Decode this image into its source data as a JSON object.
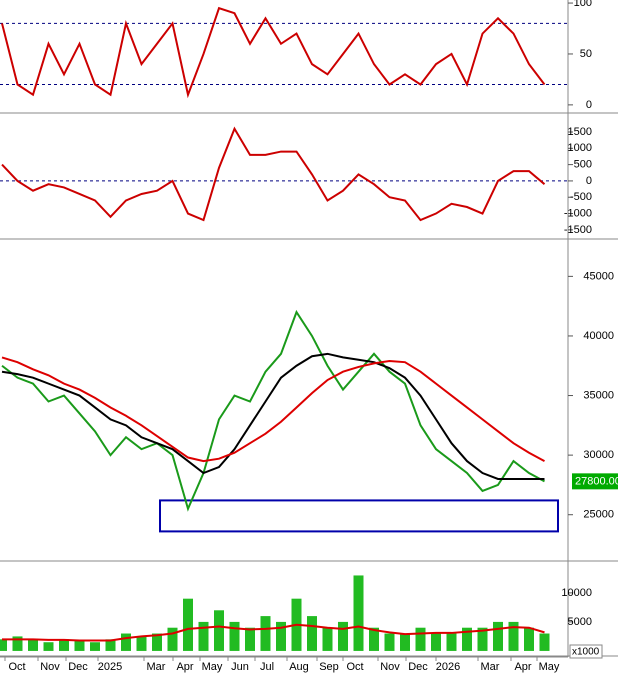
{
  "chart_data": [
    {
      "type": "line",
      "ylim": [
        -7,
        103
      ],
      "yticks": [
        0,
        50,
        100
      ],
      "ref_lines": [
        20,
        80
      ],
      "series": [
        {
          "color": "#cc0000",
          "values": [
            80,
            20,
            10,
            60,
            30,
            60,
            20,
            10,
            80,
            40,
            60,
            80,
            10,
            50,
            95,
            90,
            60,
            85,
            60,
            70,
            40,
            30,
            50,
            70,
            40,
            20,
            30,
            20,
            40,
            50,
            20,
            70,
            85,
            70,
            40,
            20
          ]
        }
      ]
    },
    {
      "type": "line",
      "ylim": [
        -1750,
        1960
      ],
      "yticks": [
        -1500,
        -1000,
        -500,
        0,
        500,
        1000,
        1500
      ],
      "ref_lines": [
        0
      ],
      "series": [
        {
          "color": "#cc0000",
          "values": [
            500,
            0,
            -300,
            -100,
            -200,
            -400,
            -600,
            -1100,
            -600,
            -400,
            -300,
            0,
            -1000,
            -1200,
            400,
            1600,
            800,
            800,
            900,
            900,
            200,
            -600,
            -300,
            200,
            -100,
            -500,
            -600,
            -1200,
            -1000,
            -700,
            -800,
            -1000,
            0,
            300,
            300,
            -100
          ]
        }
      ]
    },
    {
      "type": "line",
      "ylim": [
        21200,
        47800
      ],
      "yticks": [
        25000,
        30000,
        35000,
        40000,
        45000
      ],
      "series": [
        {
          "color": "#1a9a1a",
          "values": [
            37500,
            36500,
            36000,
            34500,
            35000,
            33500,
            32000,
            30000,
            31500,
            30500,
            31000,
            30000,
            25500,
            28500,
            33000,
            35000,
            34500,
            37000,
            38500,
            42000,
            40000,
            37500,
            35500,
            37000,
            38500,
            37000,
            36000,
            32500,
            30500,
            29500,
            28500,
            27000,
            27500,
            29500,
            28500,
            27800
          ]
        },
        {
          "color": "#000000",
          "values": [
            37000,
            36800,
            36500,
            36000,
            35500,
            35000,
            34000,
            33000,
            32500,
            31500,
            31000,
            30500,
            29500,
            28500,
            29000,
            30500,
            32500,
            34500,
            36500,
            37500,
            38300,
            38500,
            38200,
            38000,
            37800,
            37300,
            36500,
            35000,
            33000,
            31000,
            29500,
            28500,
            28000,
            28000,
            28000,
            28000
          ]
        },
        {
          "color": "#dd0000",
          "values": [
            38200,
            37800,
            37200,
            36700,
            36000,
            35500,
            34800,
            34000,
            33300,
            32500,
            31600,
            30700,
            29800,
            29500,
            29700,
            30200,
            31000,
            31800,
            32800,
            34000,
            35200,
            36300,
            37000,
            37400,
            37700,
            37900,
            37800,
            37000,
            36000,
            35000,
            34000,
            33000,
            32000,
            31000,
            30200,
            29500
          ]
        }
      ],
      "box": {
        "ylim": [
          23600,
          26200
        ],
        "color": "#0000aa"
      },
      "last_price": {
        "value": 27800,
        "label": "27800.00",
        "color": "#00aa00"
      }
    },
    {
      "type": "bar",
      "ylim": [
        -700,
        14800
      ],
      "yticks": [
        5000,
        10000
      ],
      "unit_label": "x1000",
      "series": [
        {
          "type": "bar",
          "color": "#22bb22",
          "values": [
            2000,
            2500,
            2000,
            1500,
            2000,
            1800,
            1500,
            2000,
            3000,
            2500,
            3000,
            4000,
            9000,
            5000,
            7000,
            5000,
            4000,
            6000,
            5000,
            9000,
            6000,
            4000,
            5000,
            13000,
            4000,
            3000,
            3000,
            4000,
            3000,
            3000,
            4000,
            4000,
            5000,
            5000,
            4000,
            3000
          ]
        },
        {
          "type": "line",
          "color": "#dd0000",
          "values": [
            2000,
            2000,
            2000,
            1900,
            1900,
            1800,
            1800,
            1800,
            2200,
            2500,
            2700,
            3000,
            3800,
            4000,
            4200,
            3900,
            3700,
            3800,
            4000,
            4500,
            4300,
            4000,
            3800,
            4200,
            3600,
            3200,
            2900,
            3000,
            3100,
            3100,
            3300,
            3500,
            3800,
            4100,
            4000,
            3200
          ]
        }
      ],
      "x_tick_labels": [
        "Oct",
        "Nov",
        "Dec",
        "2025",
        "Mar",
        "Apr",
        "May",
        "Jun",
        "Jul",
        "Aug",
        "Sep",
        "Oct",
        "Nov",
        "Dec",
        "2026",
        "Mar",
        "Apr",
        "May"
      ]
    }
  ]
}
